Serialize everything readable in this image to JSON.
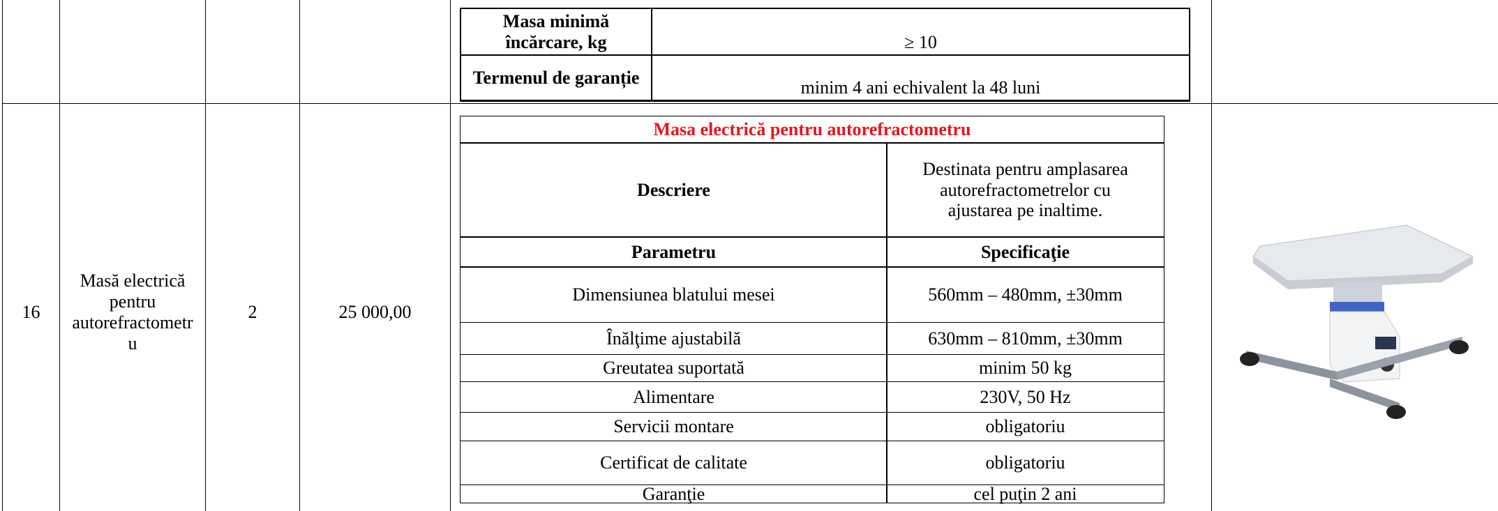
{
  "row_top": {
    "inner_table": [
      [
        "Masa minimă încărcare, kg",
        "≥ 10"
      ],
      [
        "Termenul de garanție",
        "minim 4 ani echivalent la 48 luni"
      ]
    ]
  },
  "row_main": {
    "number": "16",
    "name": "Masă electrică pentru autorefractometru",
    "quantity": "2",
    "price": "25 000,00",
    "spec_table": {
      "title": "Masa electrică pentru autorefractometru",
      "description_label": "Descriere",
      "description": "Destinata pentru amplasarea autorefractometrelor cu ajustarea pe inaltime.",
      "header": [
        "Parametru",
        "Specificaţie"
      ],
      "rows": [
        [
          "Dimensiunea blatului mesei",
          "560mm – 480mm, ±30mm"
        ],
        [
          "Înălţime ajustabilă",
          "630mm – 810mm, ±30mm"
        ],
        [
          "Greutatea suportată",
          "minim 50 kg"
        ],
        [
          "Alimentare",
          "230V, 50 Hz"
        ],
        [
          "Servicii montare",
          "obligatoriu"
        ],
        [
          "Certificat de calitate",
          "obligatoriu"
        ],
        [
          "Garanţie",
          "cel puţin 2 ani"
        ]
      ]
    }
  }
}
